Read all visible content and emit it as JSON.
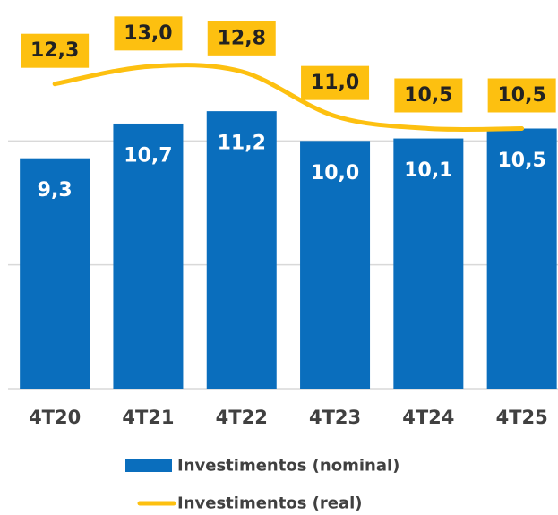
{
  "chart_data": {
    "type": "bar",
    "categories": [
      "4T20",
      "4T21",
      "4T22",
      "4T23",
      "4T24",
      "4T25"
    ],
    "series": [
      {
        "name": "Investimentos (nominal)",
        "type": "bar",
        "color": "#0a6ebd",
        "values": [
          9.3,
          10.7,
          11.2,
          10.0,
          10.1,
          10.5
        ],
        "value_labels": [
          "9,3",
          "10,7",
          "11,2",
          "10,0",
          "10,1",
          "10,5"
        ]
      },
      {
        "name": "Investimentos (real)",
        "type": "line",
        "color": "#fdc010",
        "values": [
          12.3,
          13.0,
          12.8,
          11.0,
          10.5,
          10.5
        ],
        "value_labels": [
          "12,3",
          "13,0",
          "12,8",
          "11,0",
          "10,5",
          "10,5"
        ]
      }
    ],
    "ylim": [
      0,
      15
    ],
    "yticks": [
      0,
      5,
      10
    ],
    "grid": true,
    "legend": "bottom"
  }
}
